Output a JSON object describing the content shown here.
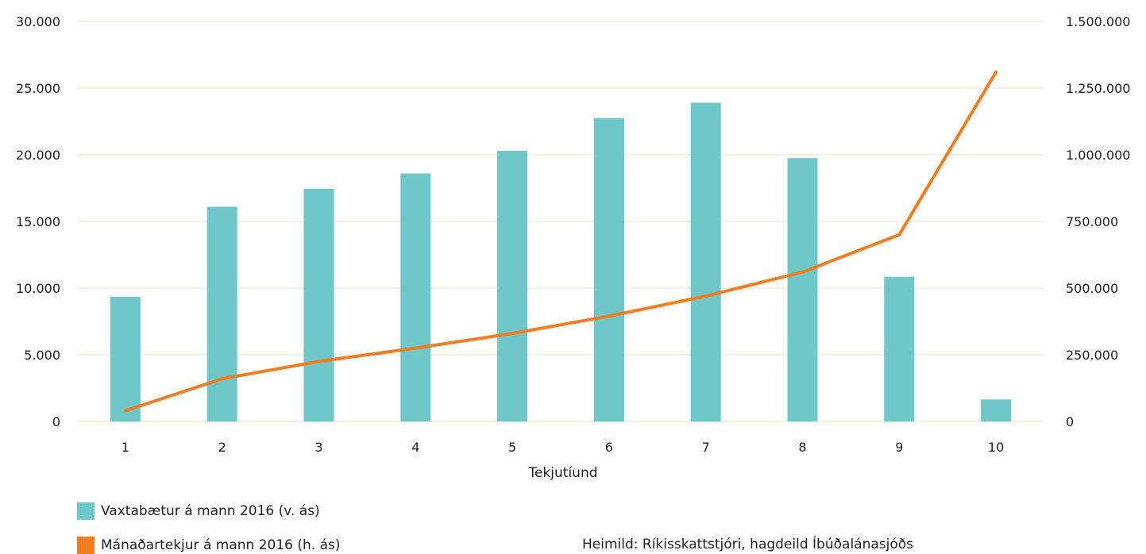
{
  "chart_data": {
    "type": "bar",
    "xlabel": "Tekjutíund",
    "categories": [
      "1",
      "2",
      "3",
      "4",
      "5",
      "6",
      "7",
      "8",
      "9",
      "10"
    ],
    "y_left": {
      "ylim": [
        0,
        30000
      ],
      "ticks": [
        "0",
        "5.000",
        "10.000",
        "15.000",
        "20.000",
        "25.000",
        "30.000"
      ]
    },
    "y_right": {
      "ylim": [
        0,
        1500000
      ],
      "ticks": [
        "0",
        "250.000",
        "500.000",
        "750.000",
        "1.000.000",
        "1.250.000",
        "1.500.000"
      ]
    },
    "series": [
      {
        "name": "Vaxtabætur á mann 2016 (v. ás)",
        "type": "bar",
        "axis": "left",
        "color": "#6fc7c9",
        "values": [
          9350,
          16100,
          17450,
          18600,
          20300,
          22750,
          23900,
          19750,
          10850,
          1650
        ]
      },
      {
        "name": "Mánaðartekjur á mann 2016 (h. ás)",
        "type": "line",
        "axis": "right",
        "color": "#f07d22",
        "values": [
          40000,
          160000,
          225000,
          275000,
          330000,
          395000,
          470000,
          560000,
          700000,
          1310000
        ]
      }
    ],
    "grid": true,
    "legend_position": "bottom-left",
    "source": "Heimild: Ríkisskattstjóri, hagdeild Íbúðalánasjóðs"
  }
}
